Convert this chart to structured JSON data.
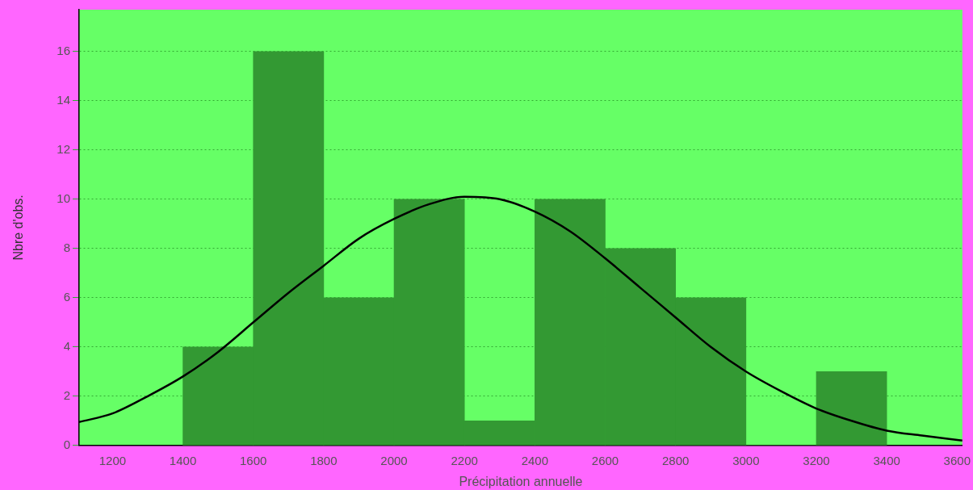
{
  "chart_data": {
    "type": "histogram",
    "xlabel": "Précipitation annuelle",
    "ylabel": "Nbre d'obs.",
    "bins": [
      1400,
      1600,
      1800,
      2000,
      2200,
      2400,
      2600,
      2800,
      3000,
      3200,
      3400
    ],
    "values": [
      4,
      16,
      6,
      10,
      1,
      10,
      8,
      6,
      0,
      3
    ],
    "color": "#339933",
    "series": [
      {
        "type": "line",
        "color": "#000000",
        "x": [
          1105,
          1200,
          1300,
          1400,
          1500,
          1600,
          1700,
          1800,
          1900,
          2000,
          2100,
          2200,
          2300,
          2400,
          2500,
          2600,
          2700,
          2800,
          2900,
          3000,
          3100,
          3200,
          3300,
          3400,
          3500,
          3615
        ],
        "values": [
          0.95,
          1.3,
          2.0,
          2.8,
          3.8,
          5.0,
          6.2,
          7.3,
          8.4,
          9.2,
          9.8,
          10.1,
          10.0,
          9.5,
          8.7,
          7.6,
          6.4,
          5.2,
          4.0,
          3.0,
          2.2,
          1.5,
          1.0,
          0.6,
          0.4,
          0.2
        ]
      }
    ],
    "xlim": [
      1105,
      3615
    ],
    "xticks": [
      1200,
      1400,
      1600,
      1800,
      2000,
      2200,
      2400,
      2600,
      2800,
      3000,
      3200,
      3400,
      3600
    ],
    "ylim": [
      0,
      17.7
    ],
    "yticks": [
      0,
      2,
      4,
      6,
      8,
      10,
      12,
      14,
      16
    ],
    "grid": "y",
    "legend": false,
    "marker": "none",
    "line_style": "solid"
  }
}
